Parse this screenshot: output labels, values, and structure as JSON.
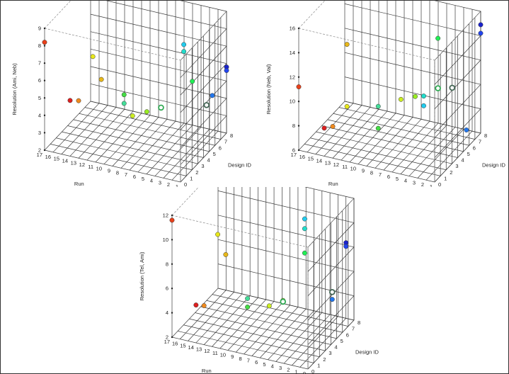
{
  "chart_data": [
    {
      "type": "scatter3d",
      "zlabel": "Resolution (Ami, Neb)",
      "xlabel": "Run",
      "ylabel": "Design ID",
      "x_ticks": [
        "17",
        "16",
        "15",
        "14",
        "13",
        "12",
        "11",
        "10",
        "9",
        "8",
        "7",
        "6",
        "5",
        "4",
        "3",
        "2",
        "1"
      ],
      "y_ticks": [
        "0",
        "1",
        "2",
        "3",
        "4",
        "5",
        "6",
        "7",
        "8"
      ],
      "z_ticks": [
        "2",
        "3",
        "4",
        "5",
        "6",
        "7",
        "8",
        "9"
      ],
      "zlim": [
        2,
        9
      ],
      "grid": true,
      "points": [
        {
          "run": 17,
          "design": 0,
          "z": 8.2,
          "color": "#e8401a",
          "highlight": false
        },
        {
          "run": 13,
          "design": 0,
          "z": 5.3,
          "color": "#ef8a1e",
          "highlight": false
        },
        {
          "run": 14,
          "design": 0,
          "z": 5.2,
          "color": "#dd2020",
          "highlight": false
        },
        {
          "run": 12,
          "design": 1,
          "z": 7.6,
          "color": "#e8e81a",
          "highlight": false
        },
        {
          "run": 11,
          "design": 1,
          "z": 6.4,
          "color": "#e8b81a",
          "highlight": false
        },
        {
          "run": 9,
          "design": 2,
          "z": 5.4,
          "color": "#44dd44",
          "highlight": false
        },
        {
          "run": 9,
          "design": 2,
          "z": 4.9,
          "color": "#44dd99",
          "highlight": false
        },
        {
          "run": 8,
          "design": 2,
          "z": 4.3,
          "color": "#ccee22",
          "highlight": false
        },
        {
          "run": 7,
          "design": 3,
          "z": 4.3,
          "color": "#99ee22",
          "highlight": false
        },
        {
          "run": 6,
          "design": 4,
          "z": 4.3,
          "color": "#33aa55",
          "highlight": true
        },
        {
          "run": 4,
          "design": 5,
          "z": 7.8,
          "color": "#22ccee",
          "highlight": false
        },
        {
          "run": 4,
          "design": 5,
          "z": 7.4,
          "color": "#22ddcc",
          "highlight": false
        },
        {
          "run": 3,
          "design": 5,
          "z": 5.8,
          "color": "#22ee55",
          "highlight": false
        },
        {
          "run": 2,
          "design": 6,
          "z": 4.2,
          "color": "#446655",
          "highlight": true
        },
        {
          "run": 2,
          "design": 7,
          "z": 4.4,
          "color": "#2277ee",
          "highlight": false
        },
        {
          "run": 1,
          "design": 8,
          "z": 5.8,
          "color": "#1a22cc",
          "highlight": false
        },
        {
          "run": 1,
          "design": 8,
          "z": 5.6,
          "color": "#2244ee",
          "highlight": false
        }
      ]
    },
    {
      "type": "scatter3d",
      "zlabel": "Resolution (Neb, Val)",
      "xlabel": "Run",
      "ylabel": "Design ID",
      "x_ticks": [
        "17",
        "16",
        "15",
        "14",
        "13",
        "12",
        "11",
        "10",
        "9",
        "8",
        "7",
        "6",
        "5",
        "4",
        "3",
        "2",
        "1"
      ],
      "y_ticks": [
        "0",
        "1",
        "2",
        "3",
        "4",
        "5",
        "6",
        "7",
        "8"
      ],
      "z_ticks": [
        "6",
        "8",
        "10",
        "12",
        "14",
        "16"
      ],
      "zlim": [
        6,
        16
      ],
      "grid": true,
      "points": [
        {
          "run": 17,
          "design": 0,
          "z": 11.2,
          "color": "#e8401a",
          "highlight": false
        },
        {
          "run": 14,
          "design": 0,
          "z": 8.3,
          "color": "#dd2020",
          "highlight": false
        },
        {
          "run": 13,
          "design": 0,
          "z": 8.6,
          "color": "#ef8a1e",
          "highlight": false
        },
        {
          "run": 12,
          "design": 1,
          "z": 15.0,
          "color": "#e8b81a",
          "highlight": false
        },
        {
          "run": 12,
          "design": 1,
          "z": 9.9,
          "color": "#e8e81a",
          "highlight": false
        },
        {
          "run": 9,
          "design": 2,
          "z": 9.9,
          "color": "#44dd99",
          "highlight": false
        },
        {
          "run": 9,
          "design": 2,
          "z": 8.1,
          "color": "#44dd44",
          "highlight": false
        },
        {
          "run": 7,
          "design": 3,
          "z": 10.3,
          "color": "#ccee22",
          "highlight": false
        },
        {
          "run": 6,
          "design": 4,
          "z": 10.2,
          "color": "#99ee22",
          "highlight": false
        },
        {
          "run": 5,
          "design": 4,
          "z": 10.4,
          "color": "#22ddcc",
          "highlight": false
        },
        {
          "run": 5,
          "design": 4,
          "z": 9.6,
          "color": "#22ccee",
          "highlight": false
        },
        {
          "run": 4,
          "design": 5,
          "z": 14.8,
          "color": "#22ee55",
          "highlight": false
        },
        {
          "run": 4,
          "design": 5,
          "z": 10.7,
          "color": "#33aa55",
          "highlight": true
        },
        {
          "run": 3,
          "design": 6,
          "z": 10.4,
          "color": "#446655",
          "highlight": true
        },
        {
          "run": 2,
          "design": 7,
          "z": 6.6,
          "color": "#2277ee",
          "highlight": false
        },
        {
          "run": 1,
          "design": 8,
          "z": 14.9,
          "color": "#1a22cc",
          "highlight": false
        },
        {
          "run": 1,
          "design": 8,
          "z": 14.2,
          "color": "#2244ee",
          "highlight": false
        }
      ]
    },
    {
      "type": "scatter3d",
      "zlabel": "Resolution (Tel, Ami)",
      "xlabel": "Run",
      "ylabel": "Design ID",
      "x_ticks": [
        "17",
        "16",
        "15",
        "14",
        "13",
        "12",
        "11",
        "10",
        "9",
        "8",
        "7",
        "6",
        "5",
        "4",
        "3",
        "2",
        "1",
        "0"
      ],
      "y_ticks": [
        "0",
        "1",
        "2",
        "3",
        "4",
        "5",
        "6",
        "7",
        "8"
      ],
      "z_ticks": [
        "2",
        "4",
        "6",
        "8",
        "10",
        "12"
      ],
      "zlim": [
        2,
        12
      ],
      "grid": true,
      "points": [
        {
          "run": 17,
          "design": 0,
          "z": 11.6,
          "color": "#e8401a",
          "highlight": false
        },
        {
          "run": 14,
          "design": 0,
          "z": 5.1,
          "color": "#dd2020",
          "highlight": false
        },
        {
          "run": 13,
          "design": 0,
          "z": 5.2,
          "color": "#ef8a1e",
          "highlight": false
        },
        {
          "run": 12,
          "design": 1,
          "z": 10.7,
          "color": "#e8e81a",
          "highlight": false
        },
        {
          "run": 11,
          "design": 1,
          "z": 9.2,
          "color": "#e8b81a",
          "highlight": false
        },
        {
          "run": 9,
          "design": 2,
          "z": 5.4,
          "color": "#44dd99",
          "highlight": false
        },
        {
          "run": 9,
          "design": 2,
          "z": 4.7,
          "color": "#44dd44",
          "highlight": false
        },
        {
          "run": 7,
          "design": 3,
          "z": 4.6,
          "color": "#ccee22",
          "highlight": false
        },
        {
          "run": 6,
          "design": 4,
          "z": 4.7,
          "color": "#99ee22",
          "highlight": false
        },
        {
          "run": 6,
          "design": 4,
          "z": 4.6,
          "color": "#33aa55",
          "highlight": true
        },
        {
          "run": 4,
          "design": 5,
          "z": 11.2,
          "color": "#22ccee",
          "highlight": false
        },
        {
          "run": 4,
          "design": 5,
          "z": 10.4,
          "color": "#22ddcc",
          "highlight": false
        },
        {
          "run": 4,
          "design": 5,
          "z": 8.4,
          "color": "#22ee55",
          "highlight": false
        },
        {
          "run": 2,
          "design": 7,
          "z": 4.5,
          "color": "#446655",
          "highlight": true
        },
        {
          "run": 2,
          "design": 7,
          "z": 3.9,
          "color": "#2277ee",
          "highlight": false
        },
        {
          "run": 1,
          "design": 8,
          "z": 8.2,
          "color": "#1a22cc",
          "highlight": false
        },
        {
          "run": 1,
          "design": 8,
          "z": 7.9,
          "color": "#2244ee",
          "highlight": false
        }
      ]
    }
  ]
}
